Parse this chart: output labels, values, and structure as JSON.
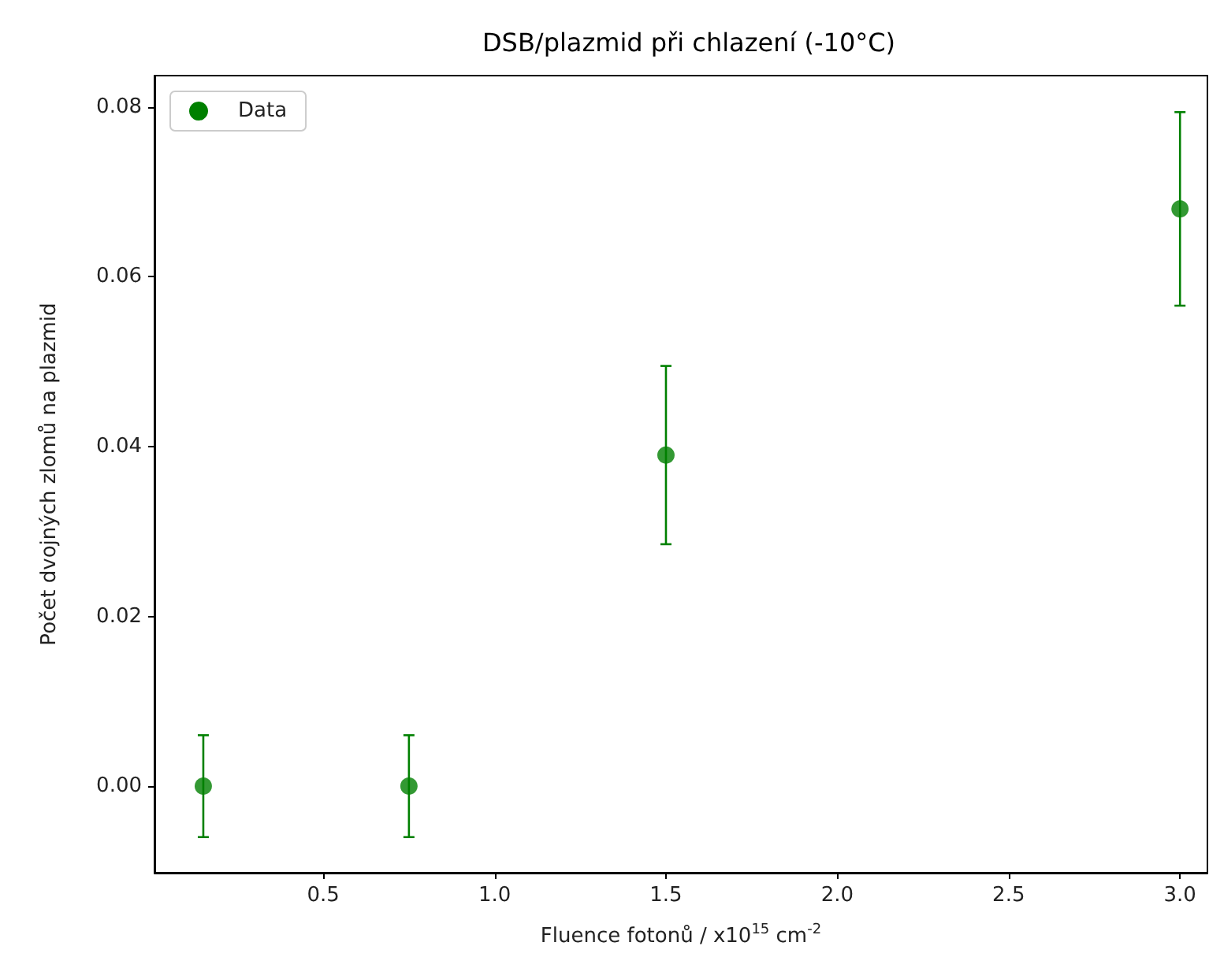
{
  "chart_data": {
    "type": "scatter",
    "title": "DSB/plazmid při chlazení (-10°C)",
    "xlabel": "Fluence fotonů / x10$^{15}$ cm$^{-2}$",
    "ylabel": "Počet dvojných zlomů na plazmid",
    "x": [
      0.15,
      0.75,
      1.5,
      3.0
    ],
    "series": [
      {
        "name": "Data",
        "color": "#008000",
        "values": [
          0.0,
          0.0,
          0.039,
          0.068
        ],
        "errors": [
          0.006,
          0.006,
          0.0105,
          0.0114
        ]
      }
    ],
    "xlim": [
      0.0075,
      3.08
    ],
    "xticks": [
      {
        "value": 0.5,
        "label": "0.5"
      },
      {
        "value": 1.0,
        "label": "1.0"
      },
      {
        "value": 1.5,
        "label": "1.5"
      },
      {
        "value": 2.0,
        "label": "2.0"
      },
      {
        "value": 2.5,
        "label": "2.5"
      },
      {
        "value": 3.0,
        "label": "3.0"
      }
    ],
    "ylim": [
      -0.0102,
      0.0837
    ],
    "yticks": [
      {
        "value": 0,
        "label": "0.00"
      },
      {
        "value": 0.02,
        "label": "0.02"
      },
      {
        "value": 0.04,
        "label": "0.04"
      },
      {
        "value": 0.06,
        "label": "0.06"
      },
      {
        "value": 0.08,
        "label": "0.08"
      }
    ],
    "marker": "circle",
    "legend": "top left",
    "grid": false
  }
}
